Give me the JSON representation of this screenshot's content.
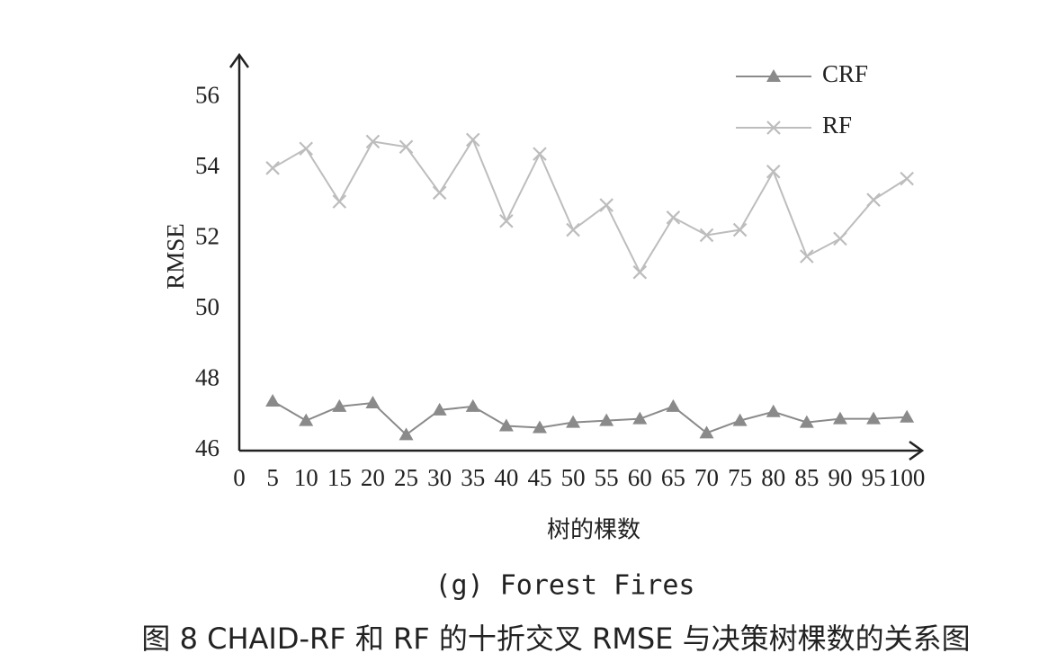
{
  "chart_data": {
    "type": "line",
    "ylabel": "RMSE",
    "xlabel": "树的棵数",
    "subtitle": "(g) Forest Fires",
    "caption": "图 8  CHAID-RF 和 RF 的十折交叉 RMSE 与决策树棵数的关系图",
    "x": [
      5,
      10,
      15,
      20,
      25,
      30,
      35,
      40,
      45,
      50,
      55,
      60,
      65,
      70,
      75,
      80,
      85,
      90,
      95,
      100
    ],
    "series": [
      {
        "name": "CRF",
        "color": "#8a8a8a",
        "marker": "triangle",
        "values": [
          47.4,
          46.85,
          47.25,
          47.35,
          46.45,
          47.15,
          47.25,
          46.7,
          46.65,
          46.8,
          46.85,
          46.9,
          47.25,
          46.5,
          46.85,
          47.1,
          46.8,
          46.9,
          46.9,
          46.95
        ]
      },
      {
        "name": "RF",
        "color": "#bdbdbd",
        "marker": "x",
        "values": [
          54.0,
          54.55,
          53.05,
          54.75,
          54.6,
          53.3,
          54.8,
          52.5,
          54.4,
          52.25,
          52.95,
          51.05,
          52.6,
          52.1,
          52.25,
          53.9,
          51.5,
          52.0,
          53.1,
          53.7
        ]
      }
    ],
    "xlim": [
      0,
      102
    ],
    "xticks": [
      0,
      5,
      10,
      15,
      20,
      25,
      30,
      35,
      40,
      45,
      50,
      55,
      60,
      65,
      70,
      75,
      80,
      85,
      90,
      95,
      100
    ],
    "ylim": [
      46,
      57
    ],
    "yticks": [
      46,
      48,
      50,
      52,
      54,
      56
    ],
    "legend": "top-right",
    "grid": false
  }
}
